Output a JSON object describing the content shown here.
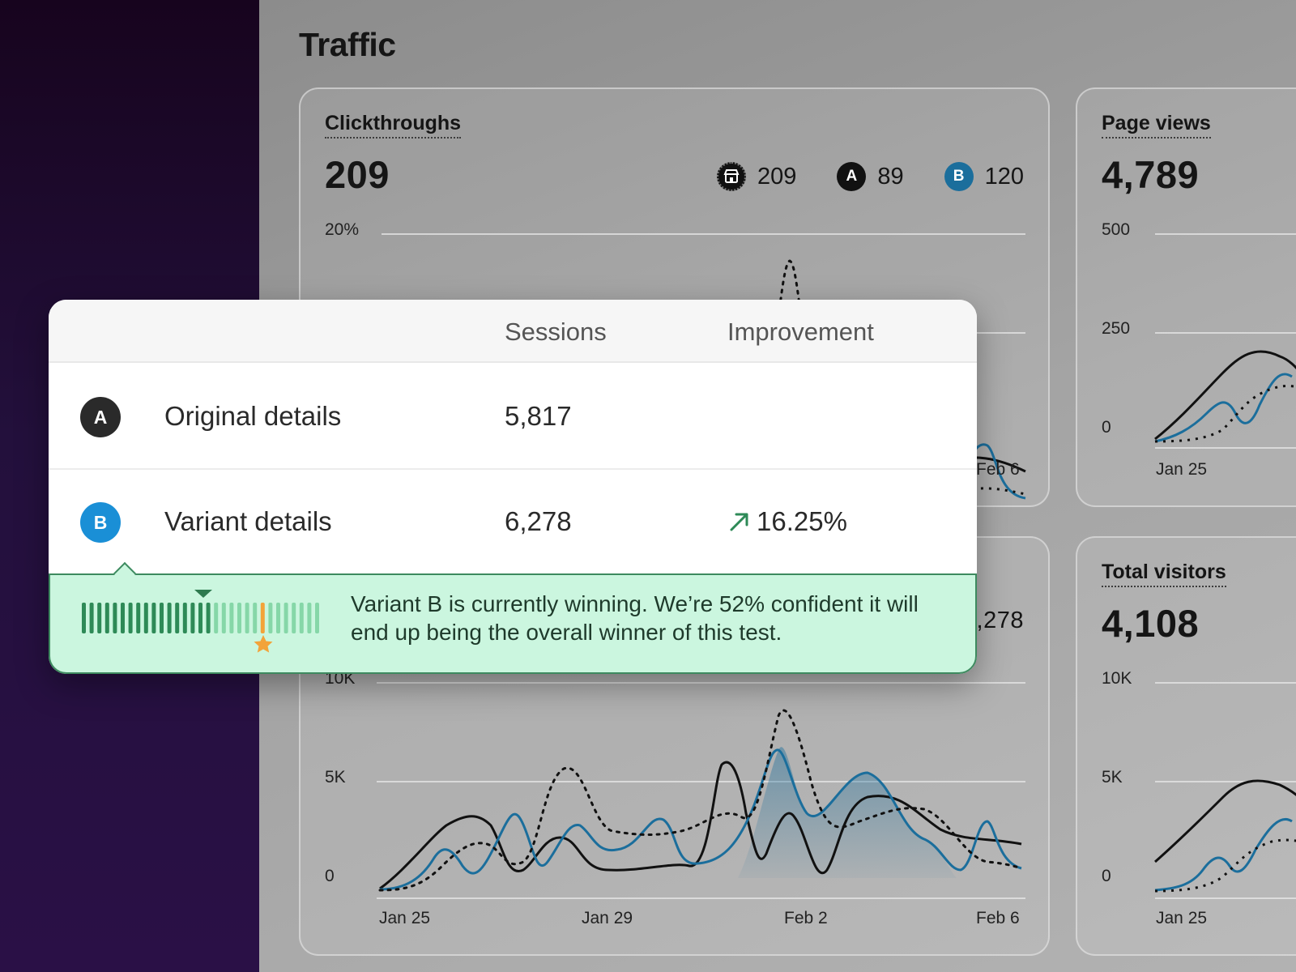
{
  "page": {
    "title": "Traffic"
  },
  "clickthroughs": {
    "title": "Clickthroughs",
    "value": "209",
    "legend": {
      "all": "209",
      "a_label": "A",
      "a": "89",
      "b_label": "B",
      "b": "120"
    },
    "y_ticks": [
      "20%"
    ],
    "x_ticks": [
      "Feb 6"
    ]
  },
  "page_views": {
    "title": "Page views",
    "value": "4,789",
    "y_ticks": [
      "500",
      "250",
      "0"
    ],
    "x_ticks": [
      "Jan 25"
    ]
  },
  "sessions_card": {
    "value": "6,278",
    "y_ticks": [
      "10K",
      "5K",
      "0"
    ],
    "x_ticks": [
      "Jan 25",
      "Jan 29",
      "Feb 2",
      "Feb 6"
    ]
  },
  "total_visitors": {
    "title": "Total visitors",
    "value": "4,108",
    "y_ticks": [
      "10K",
      "5K",
      "0"
    ],
    "x_ticks": [
      "Jan 25"
    ]
  },
  "popup": {
    "columns": {
      "sessions": "Sessions",
      "improvement": "Improvement"
    },
    "rows": [
      {
        "badge": "A",
        "label": "Original details",
        "sessions": "5,817",
        "improvement": ""
      },
      {
        "badge": "B",
        "label": "Variant details",
        "sessions": "6,278",
        "improvement": "16.25%"
      }
    ],
    "banner_text": "Variant B is currently winning. We’re 52% confident it will end up being the overall winner of this test.",
    "confidence": 0.52
  },
  "colors": {
    "variant_a": "#111111",
    "variant_b": "#1b6e9c",
    "badge_b": "#1a8fd6",
    "winning_green": "#2e8a57",
    "banner_bg": "#cbf6df",
    "marker_orange": "#f2a33a"
  },
  "icons": [
    "storefront-icon",
    "trend-up-arrow-icon",
    "star-icon",
    "triangle-marker-icon"
  ]
}
